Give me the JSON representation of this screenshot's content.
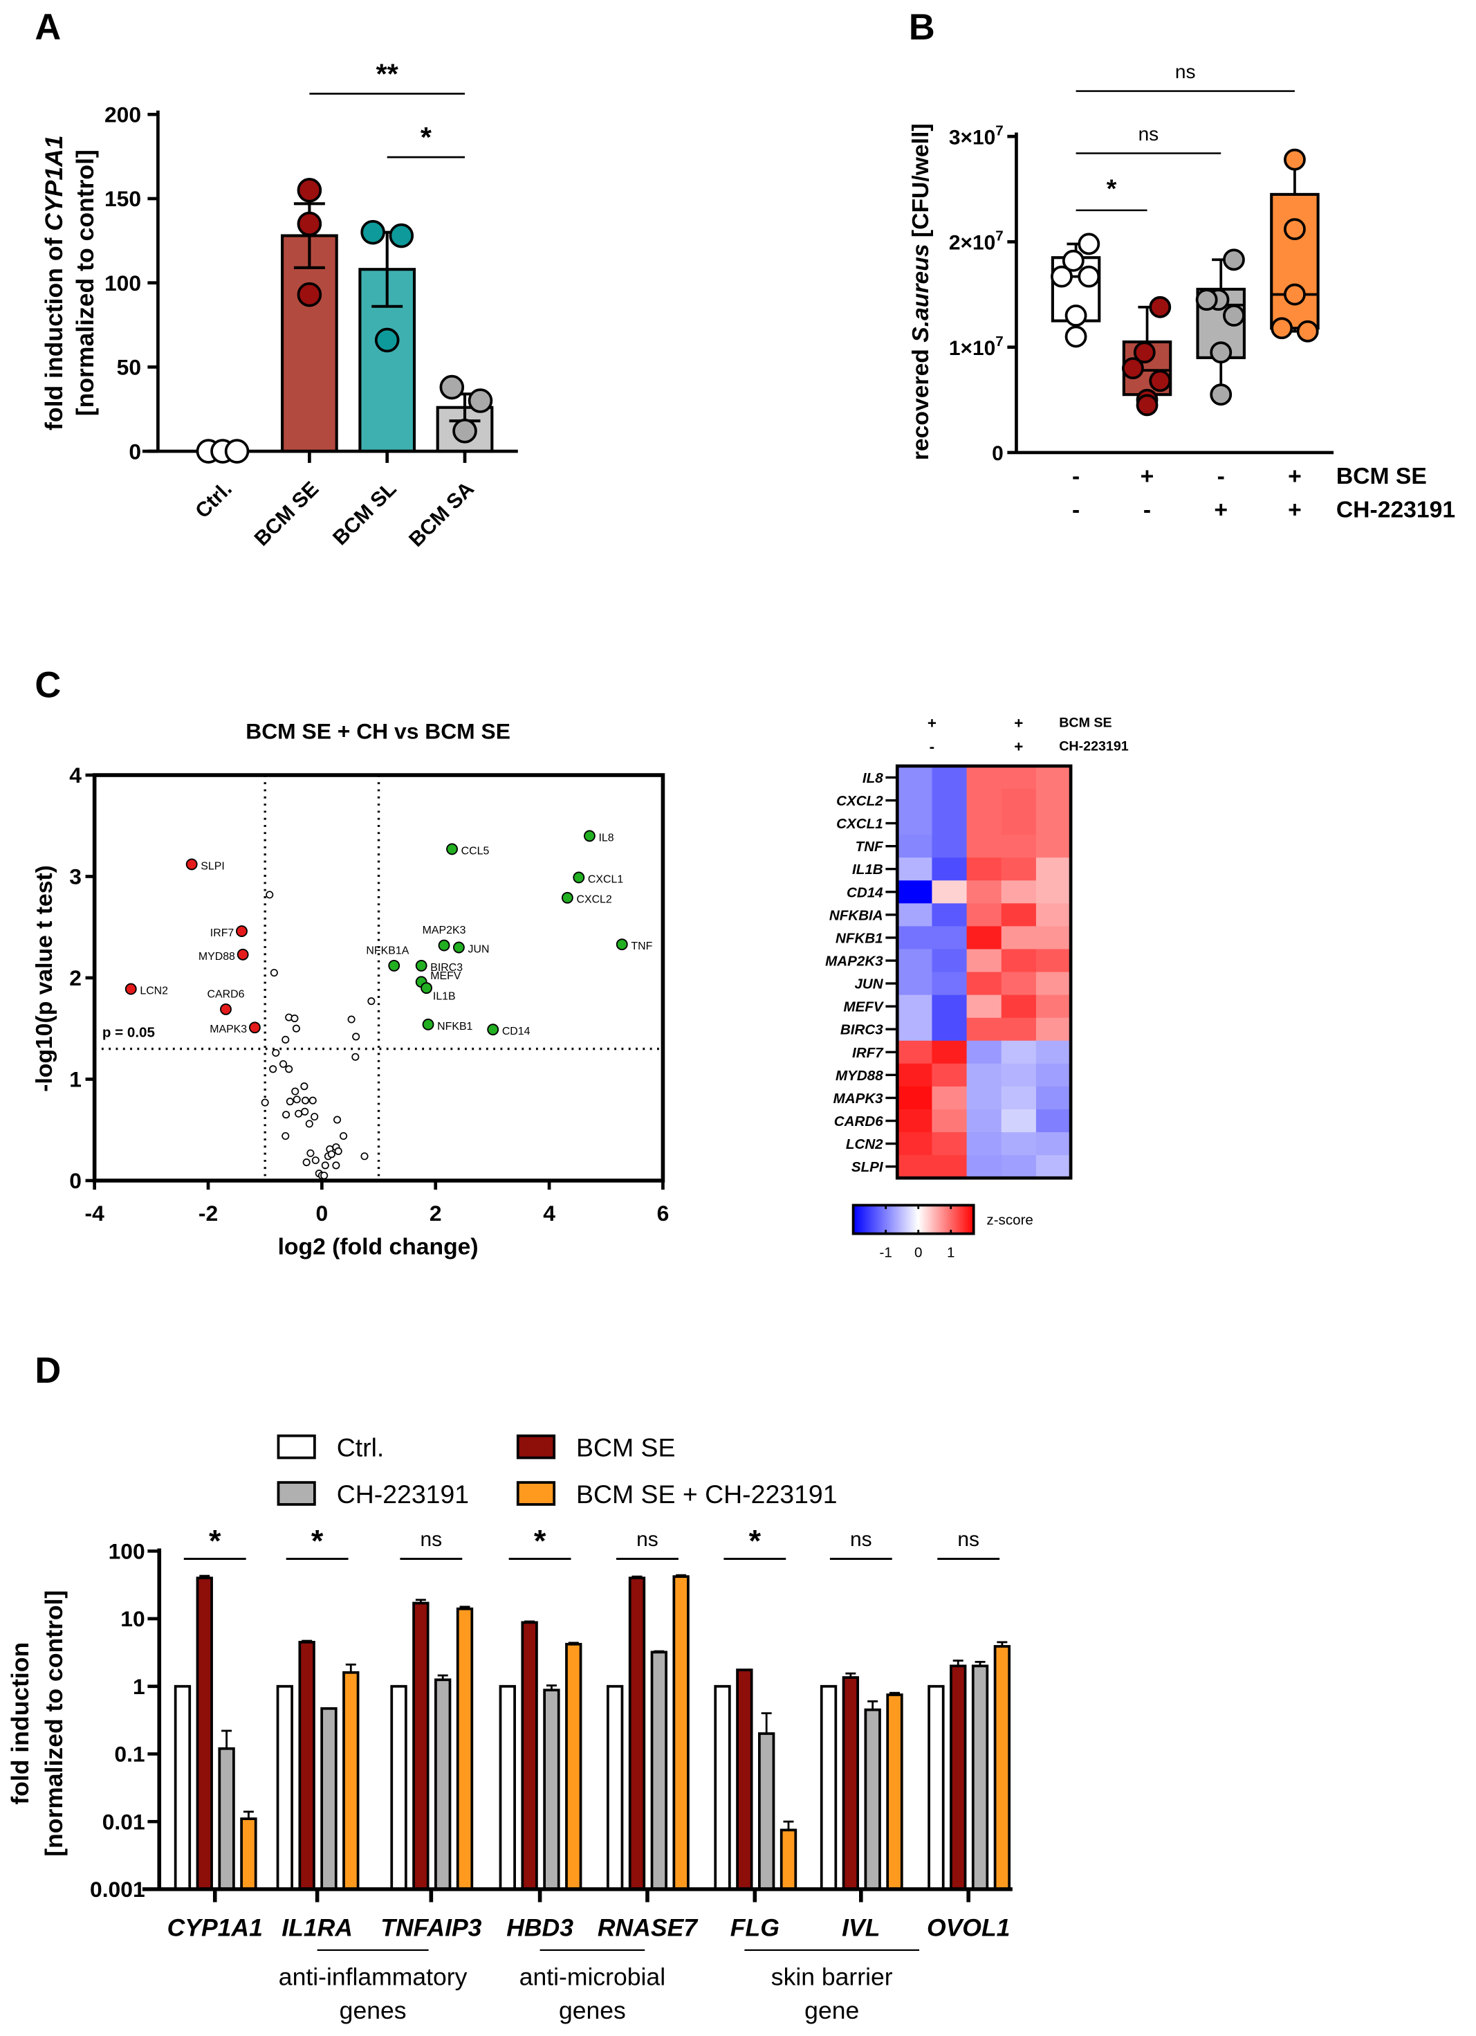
{
  "panel_labels": [
    "A",
    "B",
    "C",
    "D"
  ],
  "colors": {
    "se_bar": "#b34a3f",
    "se_pt": "#9b0f0f",
    "sl_bar": "#3fb0b0",
    "sl_pt": "#0e9a9a",
    "sa_bar": "#c8c8c8",
    "sa_pt": "#a9a9a9",
    "ch": "#b3b3b3",
    "sech": "#ff8c3a",
    "d_se": "#8e0e0a",
    "d_ch": "#b0b0b0",
    "d_sech": "#ff9a1f",
    "up": "#22b022",
    "down": "#e51b1b"
  },
  "chart_data": [
    {
      "id": "A",
      "type": "bar",
      "ylabel_parts": [
        "fold induction of ",
        "CYP1A1"
      ],
      "ylabel2": "[normalized to control]",
      "ylim": [
        0,
        200
      ],
      "yticks": [
        "0",
        "50",
        "100",
        "150",
        "200"
      ],
      "ytick_values": [
        0,
        50,
        100,
        150,
        200
      ],
      "categories": [
        "Ctrl.",
        "BCM SE",
        "BCM SL",
        "BCM SA"
      ],
      "values": [
        1,
        128,
        108,
        26
      ],
      "sem": [
        0,
        19,
        22,
        8
      ],
      "points": [
        [
          0,
          0,
          0
        ],
        [
          155,
          135,
          93
        ],
        [
          130,
          128,
          66
        ],
        [
          38,
          30,
          12
        ]
      ],
      "significance": [
        {
          "from": 1,
          "to": 3,
          "label": "**"
        },
        {
          "from": 2,
          "to": 3,
          "label": "*"
        }
      ]
    },
    {
      "id": "B",
      "type": "box",
      "ylabel_parts": [
        "recovered ",
        "S.aureus",
        " [CFU/well]"
      ],
      "ylim": [
        0,
        30000000
      ],
      "yticks": [
        {
          "base": "0",
          "exp": ""
        },
        {
          "base": "1×10",
          "exp": "7"
        },
        {
          "base": "2×10",
          "exp": "7"
        },
        {
          "base": "3×10",
          "exp": "7"
        }
      ],
      "ytick_values": [
        0,
        10000000,
        20000000,
        30000000
      ],
      "row_labels": [
        "BCM SE",
        "CH-223191"
      ],
      "conditions": [
        [
          "-",
          "-"
        ],
        [
          "+",
          "-"
        ],
        [
          "-",
          "+"
        ],
        [
          "+",
          "+"
        ]
      ],
      "boxes_e7": [
        {
          "min": 1.1,
          "q1": 1.25,
          "median": 1.67,
          "q3": 1.85,
          "max": 1.98,
          "points": [
            1.98,
            1.82,
            1.67,
            1.67,
            1.3,
            1.1
          ]
        },
        {
          "min": 0.45,
          "q1": 0.55,
          "median": 0.78,
          "q3": 1.05,
          "max": 1.38,
          "points": [
            1.38,
            0.95,
            0.8,
            0.68,
            0.5,
            0.45
          ]
        },
        {
          "min": 0.55,
          "q1": 0.9,
          "median": 1.4,
          "q3": 1.55,
          "max": 1.83,
          "points": [
            1.83,
            1.45,
            1.45,
            1.3,
            0.95,
            0.55
          ]
        },
        {
          "min": 1.15,
          "q1": 1.18,
          "median": 1.5,
          "q3": 2.45,
          "max": 2.78,
          "points": [
            2.78,
            2.12,
            1.5,
            1.18,
            1.15
          ]
        }
      ],
      "significance": [
        {
          "from": 0,
          "to": 1,
          "label": "*"
        },
        {
          "from": 0,
          "to": 2,
          "label": "ns"
        },
        {
          "from": 0,
          "to": 3,
          "label": "ns"
        }
      ]
    },
    {
      "id": "C-volcano",
      "type": "scatter",
      "title": "BCM SE + CH vs BCM SE",
      "xlabel": "log2 (fold change)",
      "ylabel": "-log10(p value t test)",
      "xlim": [
        -4,
        6
      ],
      "ylim": [
        0,
        4
      ],
      "xticks": [
        "-4",
        "-2",
        "0",
        "2",
        "4",
        "6"
      ],
      "xtick_values": [
        -4,
        -2,
        0,
        2,
        4,
        6
      ],
      "yticks": [
        "0",
        "1",
        "2",
        "3",
        "4"
      ],
      "ytick_values": [
        0,
        1,
        2,
        3,
        4
      ],
      "threshold_label": "p = 0.05",
      "threshold_y": 1.3,
      "fc_thresholds": [
        -1,
        1
      ],
      "down": [
        {
          "gene": "SLPI",
          "x": -2.29,
          "y": 3.12
        },
        {
          "gene": "IRF7",
          "x": -1.41,
          "y": 2.46
        },
        {
          "gene": "MYD88",
          "x": -1.39,
          "y": 2.23
        },
        {
          "gene": "LCN2",
          "x": -3.36,
          "y": 1.89
        },
        {
          "gene": "CARD6",
          "x": -1.69,
          "y": 1.69
        },
        {
          "gene": "MAPK3",
          "x": -1.18,
          "y": 1.51
        }
      ],
      "up": [
        {
          "gene": "IL8",
          "x": 4.71,
          "y": 3.4
        },
        {
          "gene": "CCL5",
          "x": 2.29,
          "y": 3.27
        },
        {
          "gene": "CXCL1",
          "x": 4.52,
          "y": 2.99
        },
        {
          "gene": "CXCL2",
          "x": 4.32,
          "y": 2.79
        },
        {
          "gene": "TNF",
          "x": 5.28,
          "y": 2.33
        },
        {
          "gene": "MAP2K3",
          "x": 2.15,
          "y": 2.32
        },
        {
          "gene": "JUN",
          "x": 2.41,
          "y": 2.3
        },
        {
          "gene": "NFKB1A",
          "x": 1.27,
          "y": 2.12
        },
        {
          "gene": "BIRC3",
          "x": 1.75,
          "y": 2.12
        },
        {
          "gene": "MEFV",
          "x": 1.75,
          "y": 1.96
        },
        {
          "gene": "IL1B",
          "x": 1.84,
          "y": 1.9
        },
        {
          "gene": "NFKB1",
          "x": 1.87,
          "y": 1.54
        },
        {
          "gene": "CD14",
          "x": 3.01,
          "y": 1.49
        }
      ],
      "ns": [
        [
          -0.92,
          2.82
        ],
        [
          -0.84,
          2.05
        ],
        [
          -0.58,
          1.61
        ],
        [
          -0.48,
          1.6
        ],
        [
          -0.45,
          1.5
        ],
        [
          -0.64,
          1.39
        ],
        [
          -0.81,
          1.26
        ],
        [
          -0.68,
          1.15
        ],
        [
          -0.58,
          1.1
        ],
        [
          -0.86,
          1.1
        ],
        [
          0.52,
          1.59
        ],
        [
          0.6,
          1.42
        ],
        [
          0.59,
          1.22
        ],
        [
          0.87,
          1.77
        ],
        [
          -1.0,
          0.77
        ],
        [
          -0.47,
          0.88
        ],
        [
          -0.31,
          0.93
        ],
        [
          -0.56,
          0.78
        ],
        [
          -0.44,
          0.8
        ],
        [
          -0.29,
          0.79
        ],
        [
          -0.16,
          0.79
        ],
        [
          -0.63,
          0.65
        ],
        [
          -0.41,
          0.66
        ],
        [
          -0.3,
          0.68
        ],
        [
          -0.13,
          0.63
        ],
        [
          -0.22,
          0.56
        ],
        [
          0.27,
          0.6
        ],
        [
          -0.64,
          0.44
        ],
        [
          0.38,
          0.44
        ],
        [
          -0.2,
          0.27
        ],
        [
          0.14,
          0.31
        ],
        [
          0.25,
          0.33
        ],
        [
          0.29,
          0.29
        ],
        [
          0.11,
          0.24
        ],
        [
          0.17,
          0.26
        ],
        [
          -0.27,
          0.18
        ],
        [
          -0.11,
          0.2
        ],
        [
          0.06,
          0.15
        ],
        [
          0.25,
          0.15
        ],
        [
          0.75,
          0.24
        ],
        [
          -0.05,
          0.07
        ],
        [
          0,
          0.05
        ],
        [
          0.04,
          0.05
        ]
      ]
    },
    {
      "id": "C-heatmap",
      "type": "heatmap",
      "col_header_rows": [
        {
          "label": "BCM SE",
          "marks": [
            "+",
            "+"
          ]
        },
        {
          "label": "CH-223191",
          "marks": [
            "-",
            "+"
          ]
        }
      ],
      "rows": [
        "IL8",
        "CXCL2",
        "CXCL1",
        "TNF",
        "IL1B",
        "CD14",
        "NFKBIA",
        "NFKB1",
        "MAP2K3",
        "JUN",
        "MEFV",
        "BIRC3",
        "IRF7",
        "MYD88",
        "MAPK3",
        "CARD6",
        "LCN2",
        "SLPI"
      ],
      "values": [
        [
          -0.9,
          -1.2,
          1.0,
          1.0,
          0.9
        ],
        [
          -0.9,
          -1.2,
          1.0,
          1.05,
          0.9
        ],
        [
          -0.9,
          -1.2,
          1.0,
          1.05,
          0.9
        ],
        [
          -0.95,
          -1.2,
          1.0,
          1.0,
          0.9
        ],
        [
          -0.6,
          -1.4,
          1.2,
          1.1,
          0.5
        ],
        [
          -2.0,
          0.3,
          0.9,
          0.6,
          0.5
        ],
        [
          -0.7,
          -1.3,
          1.0,
          1.3,
          0.6
        ],
        [
          -1.1,
          -1.1,
          1.5,
          0.7,
          0.7
        ],
        [
          -0.9,
          -1.2,
          0.7,
          1.2,
          1.1
        ],
        [
          -0.9,
          -1.1,
          1.2,
          1.0,
          0.7
        ],
        [
          -0.6,
          -1.4,
          0.6,
          1.3,
          0.9
        ],
        [
          -0.6,
          -1.4,
          1.1,
          1.1,
          0.7
        ],
        [
          1.2,
          1.5,
          -0.8,
          -0.5,
          -0.65
        ],
        [
          1.5,
          1.2,
          -0.65,
          -0.6,
          -0.75
        ],
        [
          1.6,
          0.8,
          -0.65,
          -0.5,
          -0.85
        ],
        [
          1.5,
          0.9,
          -0.7,
          -0.35,
          -1.0
        ],
        [
          1.4,
          1.2,
          -0.75,
          -0.65,
          -0.7
        ],
        [
          1.3,
          1.3,
          -0.8,
          -0.75,
          -0.55
        ]
      ],
      "colorbar_label": "z-score",
      "colorbar_ticks": [
        "-1",
        "0",
        "1"
      ],
      "colorbar_tick_values": [
        -1,
        0,
        1
      ],
      "colorbar_range": [
        -2,
        1.7
      ]
    },
    {
      "id": "D",
      "type": "bar",
      "yscale": "log",
      "ylabel": "fold induction",
      "ylabel2": "[normalized to control]",
      "ylim": [
        0.001,
        100
      ],
      "yticks": [
        "0.001",
        "0.01",
        "0.1",
        "1",
        "10",
        "100"
      ],
      "ytick_values": [
        0.001,
        0.01,
        0.1,
        1,
        10,
        100
      ],
      "legend": [
        "Ctrl.",
        "BCM SE",
        "CH-223191",
        "BCM SE + CH-223191"
      ],
      "categories": [
        "CYP1A1",
        "IL1RA",
        "TNFAIP3",
        "HBD3",
        "RNASE7",
        "FLG",
        "IVL",
        "OVOL1"
      ],
      "series": [
        {
          "name": "Ctrl.",
          "values": [
            1,
            1,
            1,
            1,
            1,
            1,
            1,
            1
          ],
          "err": [
            0,
            0,
            0,
            0,
            0,
            0,
            0,
            0
          ]
        },
        {
          "name": "BCM SE",
          "values": [
            40,
            4.5,
            17,
            8.8,
            40,
            1.75,
            1.35,
            2.0
          ],
          "err": [
            3,
            0.2,
            2,
            0.3,
            2,
            0,
            0.2,
            0.4
          ]
        },
        {
          "name": "CH-223191",
          "values": [
            0.12,
            0.47,
            1.25,
            0.88,
            3.2,
            0.2,
            0.45,
            2.0
          ],
          "err": [
            0.1,
            0,
            0.2,
            0.15,
            0.1,
            0.2,
            0.15,
            0.3
          ]
        },
        {
          "name": "BCM SE + CH-223191",
          "values": [
            0.011,
            1.6,
            14,
            4.2,
            42,
            0.0075,
            0.75,
            3.9
          ],
          "err": [
            0.003,
            0.5,
            1,
            0.2,
            2,
            0.0025,
            0.05,
            0.6
          ]
        }
      ],
      "significance": [
        "*",
        "*",
        "ns",
        "*",
        "ns",
        "*",
        "ns",
        "ns"
      ],
      "groups": [
        {
          "lines": [
            "anti-inflammatory",
            "genes"
          ],
          "from": 1,
          "to": 2
        },
        {
          "lines": [
            "anti-microbial",
            "genes"
          ],
          "from": 3,
          "to": 4
        },
        {
          "lines": [
            "skin barrier",
            "gene"
          ],
          "from": 5,
          "to": 7
        }
      ]
    }
  ]
}
